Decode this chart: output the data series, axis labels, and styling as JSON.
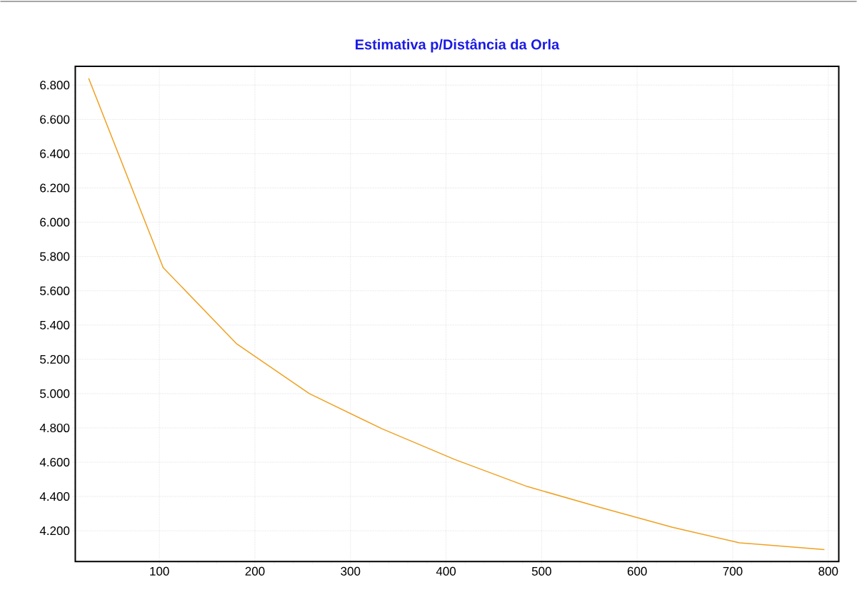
{
  "chart_data": {
    "type": "line",
    "title": "Estimativa p/Distância da Orla",
    "x": [
      26,
      104,
      181,
      257,
      333,
      409,
      485,
      561,
      637,
      707,
      796
    ],
    "series": [
      {
        "color": "#f0a020",
        "values": [
          6840,
          5735,
          5290,
          5000,
          4795,
          4616,
          4458,
          4337,
          4220,
          4130,
          4090
        ]
      }
    ],
    "xlim": [
      12,
      811
    ],
    "ylim": [
      4020,
      6910
    ],
    "xticks": [
      100,
      200,
      300,
      400,
      500,
      600,
      700,
      800
    ],
    "yticks": [
      {
        "value": 4200,
        "label": "4.200"
      },
      {
        "value": 4400,
        "label": "4.400"
      },
      {
        "value": 4600,
        "label": "4.600"
      },
      {
        "value": 4800,
        "label": "4.800"
      },
      {
        "value": 5000,
        "label": "5.000"
      },
      {
        "value": 5200,
        "label": "5.200"
      },
      {
        "value": 5400,
        "label": "5.400"
      },
      {
        "value": 5600,
        "label": "5.600"
      },
      {
        "value": 5800,
        "label": "5.800"
      },
      {
        "value": 6000,
        "label": "6.000"
      },
      {
        "value": 6200,
        "label": "6.200"
      },
      {
        "value": 6400,
        "label": "6.400"
      },
      {
        "value": 6600,
        "label": "6.600"
      },
      {
        "value": 6800,
        "label": "6.800"
      }
    ],
    "grid": true,
    "marker": "none",
    "line_style": "solid"
  }
}
